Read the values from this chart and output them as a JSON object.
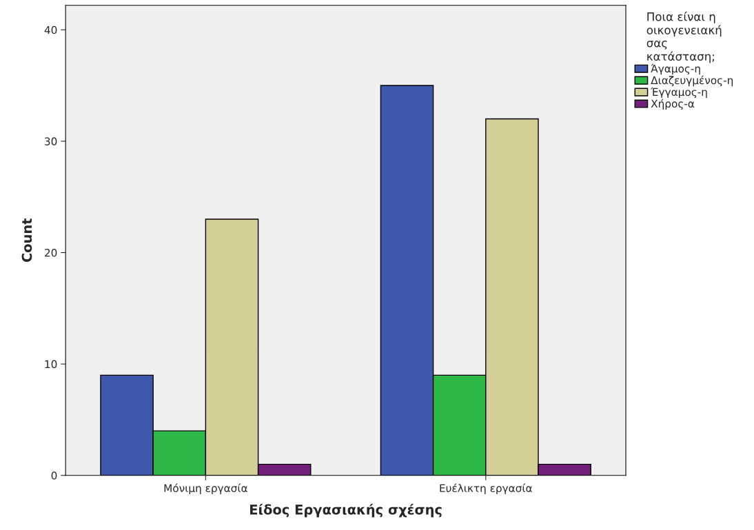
{
  "chart_data": {
    "type": "bar",
    "xlabel": "Είδος Εργασιακής σχέσης",
    "ylabel": "Count",
    "legend_title": "Ποια είναι η\nοικογενειακή\nσας\nκατάσταση;",
    "categories": [
      "Μόνιμη εργασία",
      "Ευέλικτη εργασία"
    ],
    "series": [
      {
        "name": "Άγαμος-η",
        "color": "#3e58ac",
        "values": [
          9,
          35
        ]
      },
      {
        "name": "Διαζευγμένος-η",
        "color": "#2eb848",
        "values": [
          4,
          9
        ]
      },
      {
        "name": "Έγγαμος-η",
        "color": "#d4ce97",
        "values": [
          23,
          32
        ]
      },
      {
        "name": "Χήρος-α",
        "color": "#73207a",
        "values": [
          1,
          1
        ]
      }
    ],
    "ylim": [
      0,
      42.2
    ],
    "yticks": [
      0,
      10,
      20,
      30,
      40
    ],
    "grid": false,
    "legend": "right"
  }
}
